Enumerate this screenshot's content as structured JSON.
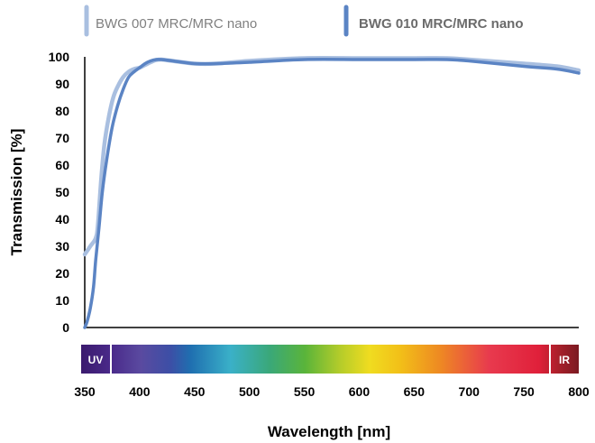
{
  "chart_data": {
    "type": "line",
    "title": "",
    "xlabel": "Wavelength [nm]",
    "ylabel": "Transmission [%]",
    "xlim": [
      350,
      800
    ],
    "ylim": [
      0,
      100
    ],
    "xticks": [
      350,
      400,
      450,
      500,
      550,
      600,
      650,
      700,
      750,
      800
    ],
    "yticks": [
      0,
      10,
      20,
      30,
      40,
      50,
      60,
      70,
      80,
      90,
      100
    ],
    "grid": false,
    "legend_position": "top",
    "spectrum_band": {
      "left_label": "UV",
      "right_label": "IR"
    },
    "series": [
      {
        "name": "BWG 007 MRC/MRC nano",
        "color": "#a9bfe0",
        "x": [
          350,
          355,
          360,
          362,
          365,
          368,
          372,
          376,
          380,
          385,
          390,
          395,
          400,
          405,
          410,
          415,
          420,
          430,
          450,
          470,
          500,
          550,
          600,
          650,
          680,
          700,
          750,
          780,
          800
        ],
        "y": [
          27,
          30,
          33,
          38,
          55,
          68,
          78,
          85,
          89,
          92.5,
          94.5,
          95.5,
          96,
          97,
          98,
          98.8,
          99,
          98.5,
          97.5,
          97.5,
          98.5,
          99.5,
          99.5,
          99.5,
          99.5,
          99,
          97.5,
          96.5,
          95
        ]
      },
      {
        "name": "BWG 010 MRC/MRC nano",
        "color": "#5b84c4",
        "x": [
          350,
          352,
          355,
          358,
          360,
          363,
          366,
          370,
          375,
          380,
          385,
          390,
          395,
          400,
          405,
          410,
          415,
          420,
          430,
          450,
          470,
          500,
          550,
          600,
          650,
          680,
          700,
          750,
          780,
          800
        ],
        "y": [
          0,
          2,
          7,
          15,
          25,
          37,
          50,
          62,
          74,
          82,
          88,
          92.5,
          94.5,
          96,
          97.5,
          98.5,
          99,
          99,
          98.5,
          97.5,
          97.5,
          98,
          99,
          99,
          99,
          99,
          98.5,
          96.5,
          95.5,
          94
        ]
      }
    ]
  }
}
